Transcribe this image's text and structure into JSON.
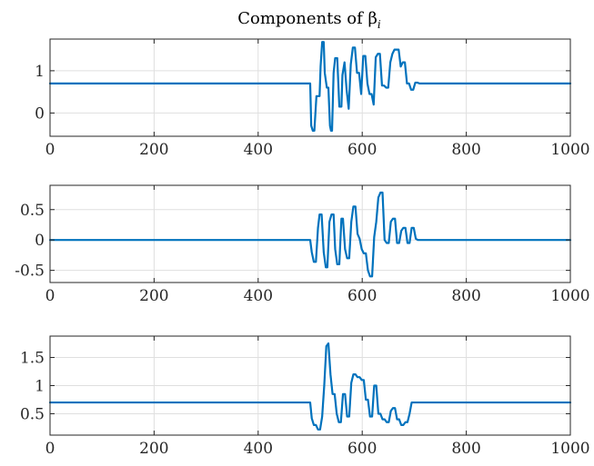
{
  "title": "Components of β",
  "title_subscript": "i",
  "colors": {
    "series": "#0072BD",
    "axes": "#262626",
    "grid": "#dfdfdf"
  },
  "chart_data": [
    {
      "type": "line",
      "xlim": [
        0,
        1000
      ],
      "ylim": [
        -0.55,
        1.75
      ],
      "xticks": [
        0,
        200,
        400,
        600,
        800,
        1000
      ],
      "yticks": [
        0,
        1
      ],
      "xtick_labels": [
        "0",
        "200",
        "400",
        "600",
        "800",
        "1000"
      ],
      "ytick_labels": [
        "0",
        "1"
      ],
      "grid": true,
      "series": [
        {
          "x": [
            0,
            500,
            502,
            505,
            508,
            512,
            518,
            520,
            523,
            526,
            528,
            532,
            535,
            538,
            540,
            542,
            545,
            548,
            552,
            556,
            560,
            562,
            566,
            570,
            574,
            578,
            582,
            586,
            590,
            594,
            598,
            602,
            606,
            610,
            614,
            618,
            622,
            626,
            630,
            634,
            638,
            642,
            646,
            650,
            654,
            658,
            662,
            666,
            670,
            674,
            678,
            682,
            686,
            690,
            694,
            698,
            702,
            706,
            710,
            1000
          ],
          "y": [
            0.7,
            0.7,
            -0.3,
            -0.42,
            -0.42,
            0.4,
            0.4,
            1.1,
            1.68,
            1.68,
            0.95,
            0.6,
            0.6,
            -0.3,
            -0.42,
            -0.42,
            0.95,
            1.3,
            1.3,
            0.15,
            0.15,
            0.9,
            1.2,
            0.55,
            0.1,
            1.15,
            1.55,
            1.55,
            0.95,
            0.95,
            0.45,
            1.35,
            1.35,
            0.7,
            0.45,
            0.45,
            0.2,
            1.32,
            1.4,
            1.4,
            0.65,
            0.65,
            0.6,
            0.6,
            1.2,
            1.4,
            1.5,
            1.5,
            1.5,
            1.1,
            1.2,
            1.2,
            0.7,
            0.7,
            0.55,
            0.55,
            0.72,
            0.72,
            0.7,
            0.7
          ]
        }
      ]
    },
    {
      "type": "line",
      "xlim": [
        0,
        1000
      ],
      "ylim": [
        -0.7,
        0.9
      ],
      "xticks": [
        0,
        200,
        400,
        600,
        800,
        1000
      ],
      "yticks": [
        -0.5,
        0,
        0.5
      ],
      "xtick_labels": [
        "0",
        "200",
        "400",
        "600",
        "800",
        "1000"
      ],
      "ytick_labels": [
        "-0.5",
        "0",
        "0.5"
      ],
      "grid": true,
      "series": [
        {
          "x": [
            0,
            500,
            503,
            507,
            511,
            515,
            518,
            522,
            526,
            530,
            533,
            537,
            541,
            545,
            548,
            552,
            556,
            560,
            563,
            567,
            571,
            575,
            579,
            583,
            587,
            591,
            595,
            599,
            603,
            607,
            611,
            615,
            619,
            623,
            627,
            631,
            635,
            639,
            643,
            647,
            651,
            655,
            659,
            663,
            667,
            671,
            675,
            679,
            683,
            687,
            691,
            695,
            699,
            703,
            707,
            1000
          ],
          "y": [
            0,
            0,
            -0.2,
            -0.36,
            -0.36,
            0.2,
            0.42,
            0.42,
            -0.2,
            -0.45,
            -0.45,
            0.3,
            0.42,
            0.42,
            -0.15,
            -0.4,
            -0.4,
            0.35,
            0.35,
            -0.15,
            -0.3,
            -0.3,
            0.3,
            0.55,
            0.55,
            0.1,
            0.02,
            -0.15,
            -0.22,
            -0.22,
            -0.5,
            -0.6,
            -0.6,
            0.05,
            0.3,
            0.7,
            0.78,
            0.78,
            0.0,
            -0.05,
            -0.05,
            0.3,
            0.35,
            0.35,
            -0.05,
            -0.05,
            0.15,
            0.2,
            0.2,
            -0.05,
            -0.05,
            0.2,
            0.2,
            0.02,
            0.0,
            0.0
          ]
        }
      ]
    },
    {
      "type": "line",
      "xlim": [
        0,
        1000
      ],
      "ylim": [
        0.12,
        1.88
      ],
      "xticks": [
        0,
        200,
        400,
        600,
        800,
        1000
      ],
      "yticks": [
        0.5,
        1,
        1.5
      ],
      "xtick_labels": [
        "0",
        "200",
        "400",
        "600",
        "800",
        "1000"
      ],
      "ytick_labels": [
        "0.5",
        "1",
        "1.5"
      ],
      "grid": true,
      "series": [
        {
          "x": [
            0,
            500,
            503,
            507,
            511,
            515,
            519,
            523,
            527,
            531,
            535,
            539,
            543,
            547,
            551,
            555,
            559,
            563,
            567,
            571,
            575,
            579,
            583,
            587,
            591,
            595,
            599,
            603,
            607,
            611,
            615,
            619,
            623,
            627,
            631,
            635,
            639,
            643,
            647,
            651,
            655,
            659,
            663,
            667,
            671,
            675,
            679,
            683,
            687,
            691,
            695,
            699,
            703,
            707,
            711,
            1000
          ],
          "y": [
            0.7,
            0.7,
            0.42,
            0.3,
            0.3,
            0.22,
            0.22,
            0.45,
            1.0,
            1.7,
            1.75,
            1.2,
            0.85,
            0.85,
            0.5,
            0.35,
            0.35,
            0.85,
            0.85,
            0.45,
            0.45,
            1.05,
            1.2,
            1.2,
            1.15,
            1.15,
            1.1,
            1.1,
            0.75,
            0.75,
            0.45,
            0.45,
            1.0,
            1.0,
            0.5,
            0.5,
            0.4,
            0.4,
            0.35,
            0.35,
            0.55,
            0.6,
            0.6,
            0.4,
            0.4,
            0.3,
            0.3,
            0.35,
            0.35,
            0.5,
            0.7,
            0.7,
            0.7,
            0.7,
            0.7,
            0.7
          ]
        }
      ]
    }
  ]
}
